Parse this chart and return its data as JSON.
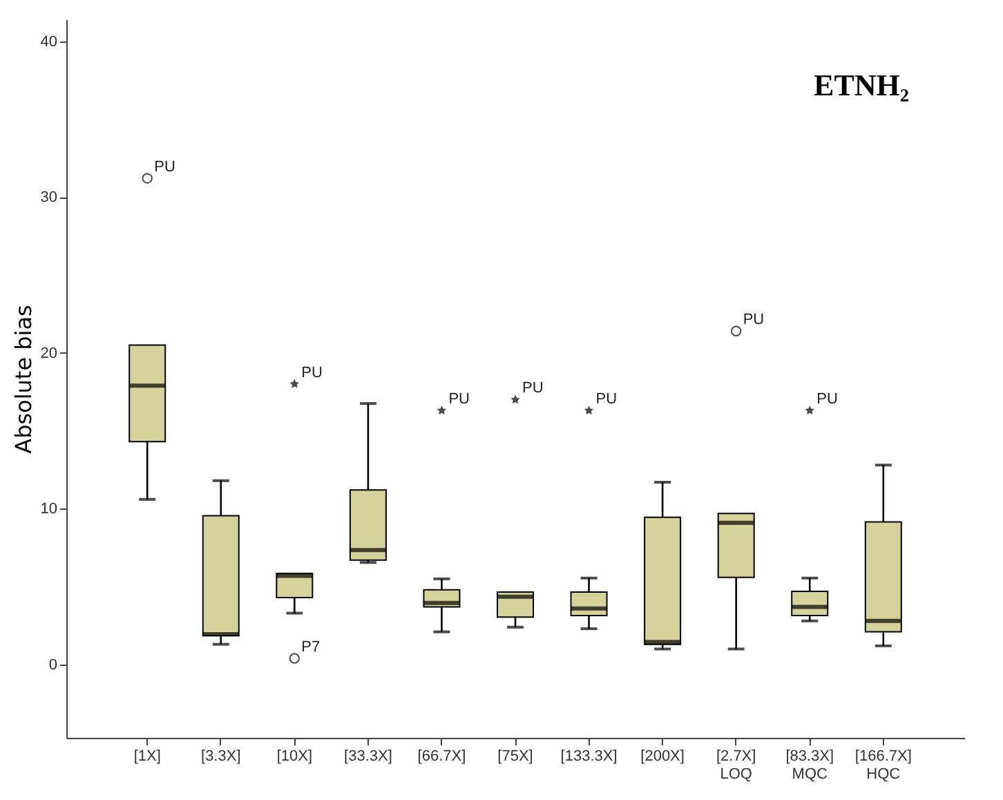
{
  "chart_data": {
    "type": "box",
    "title": "ETNH₂",
    "ylabel": "Absolute bias",
    "categories": [
      "[1X]",
      "[3.3X]",
      "[10X]",
      "[33.3X]",
      "[66.7X]",
      "[75X]",
      "[133.3X]",
      "[200X]",
      "[2.7X]\nLOQ",
      "[83.3X]\nMQC",
      "[166.7X]\nHQC"
    ],
    "boxes": [
      {
        "low": 10.6,
        "q1": 14.3,
        "median": 17.9,
        "q3": 20.5,
        "high": 20.5
      },
      {
        "low": 1.3,
        "q1": 1.85,
        "median": 1.95,
        "q3": 9.55,
        "high": 11.8
      },
      {
        "low": 3.3,
        "q1": 4.3,
        "median": 5.7,
        "q3": 5.85,
        "high": 5.85
      },
      {
        "low": 6.55,
        "q1": 6.7,
        "median": 7.35,
        "q3": 11.2,
        "high": 16.75
      },
      {
        "low": 2.1,
        "q1": 3.7,
        "median": 3.95,
        "q3": 4.8,
        "high": 5.5
      },
      {
        "low": 2.4,
        "q1": 3.05,
        "median": 4.35,
        "q3": 4.65,
        "high": 4.65
      },
      {
        "low": 2.3,
        "q1": 3.15,
        "median": 3.6,
        "q3": 4.65,
        "high": 5.55
      },
      {
        "low": 1.0,
        "q1": 1.3,
        "median": 1.45,
        "q3": 9.45,
        "high": 11.7
      },
      {
        "low": 1.0,
        "q1": 5.6,
        "median": 9.1,
        "q3": 9.7,
        "high": 9.7
      },
      {
        "low": 2.8,
        "q1": 3.15,
        "median": 3.7,
        "q3": 4.7,
        "high": 5.55
      },
      {
        "low": 1.2,
        "q1": 2.1,
        "median": 2.8,
        "q3": 9.15,
        "high": 12.8
      }
    ],
    "series": [
      {
        "type": "scatter",
        "marker": "star",
        "color": "#000000",
        "x": [
          "[10X]",
          "[66.7X]",
          "[75X]",
          "[133.3X]",
          "[83.3X]\nMQC"
        ],
        "values": [
          18.0,
          16.3,
          17.0,
          16.3,
          16.3
        ]
      },
      {
        "type": "scatter",
        "marker": "circle",
        "color": "#000000",
        "x": [
          "[1X]",
          "[10X]",
          "[2.7X]\nLOQ"
        ],
        "values": [
          31.2,
          0.4,
          21.4
        ]
      }
    ],
    "color": "#d6d29c",
    "annotations": [
      {
        "text": "PU",
        "x": "[1X]",
        "y": 31.2
      },
      {
        "text": "PU",
        "x": "[10X]",
        "y": 18.0
      },
      {
        "text": "P7",
        "x": "[10X]",
        "y": 0.4
      },
      {
        "text": "PU",
        "x": "[66.7X]",
        "y": 16.3
      },
      {
        "text": "PU",
        "x": "[75X]",
        "y": 17.0
      },
      {
        "text": "PU",
        "x": "[133.3X]",
        "y": 16.3
      },
      {
        "text": "PU",
        "x": "[2.7X]\nLOQ",
        "y": 21.4
      },
      {
        "text": "PU",
        "x": "[83.3X]\nMQC",
        "y": 16.3
      }
    ],
    "ylim": [
      -4.7,
      41.4
    ],
    "yticks": [
      0,
      10,
      20,
      30,
      40
    ],
    "grid": false
  }
}
